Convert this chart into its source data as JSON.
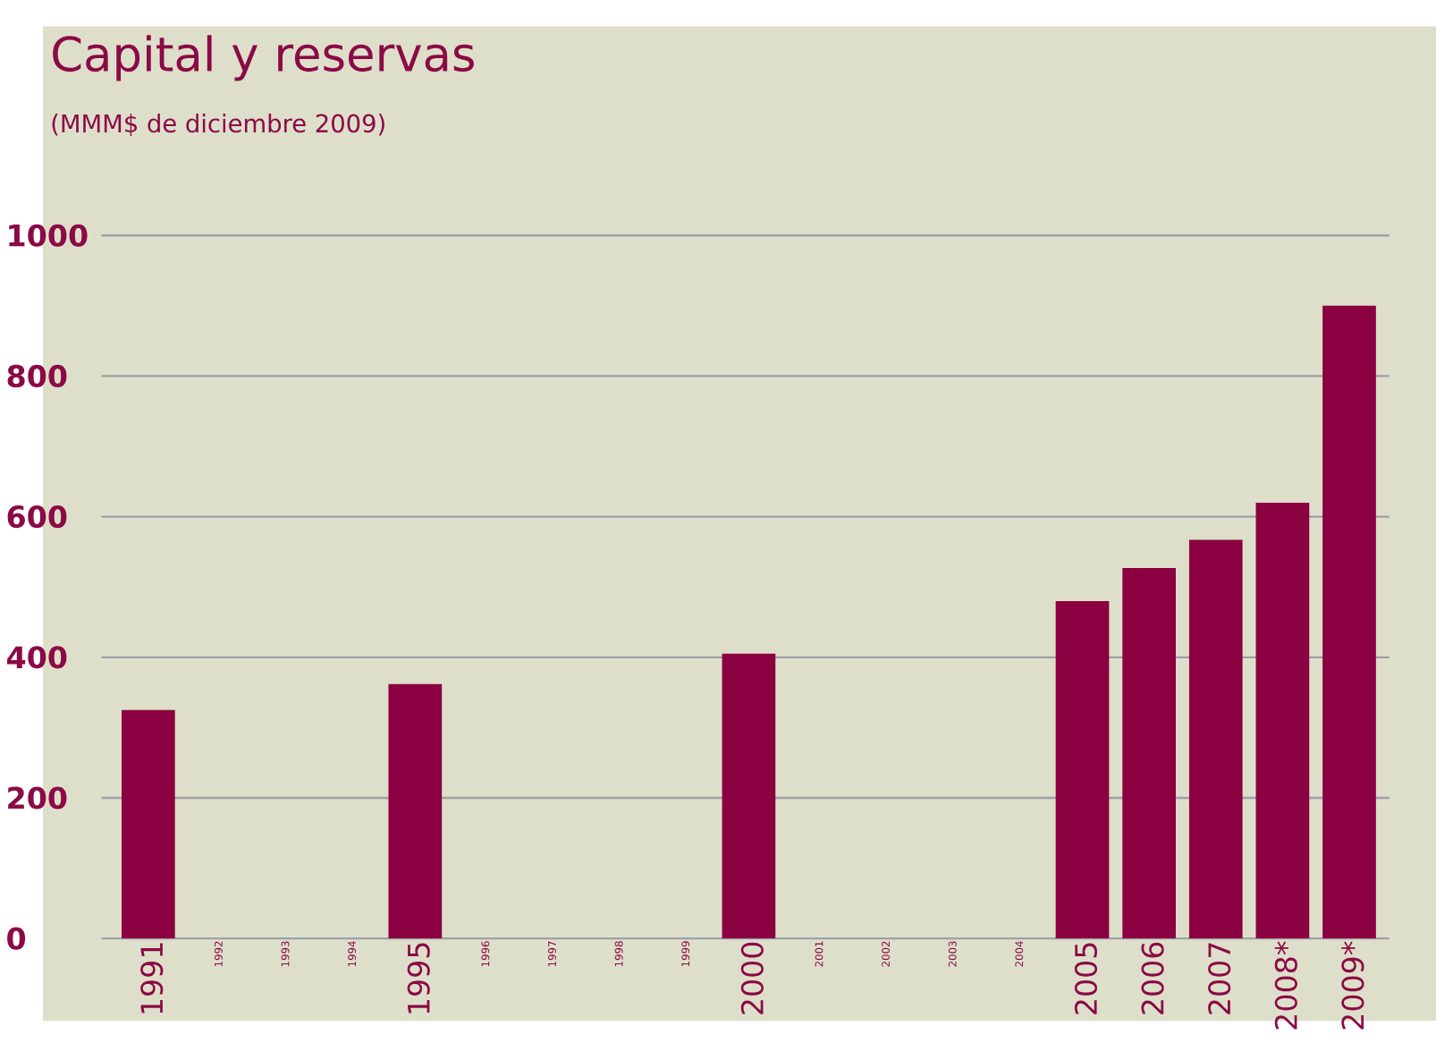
{
  "chart_data": {
    "type": "bar",
    "title": "Capital y reservas",
    "subtitle": "(MMM$ de diciembre 2009)",
    "categories": [
      "1991",
      "1992",
      "1993",
      "1994",
      "1995",
      "1996",
      "1997",
      "1998",
      "1999",
      "2000",
      "2001",
      "2002",
      "2003",
      "2004",
      "2005",
      "2006",
      "2007",
      "2008*",
      "2009*"
    ],
    "values": [
      325,
      null,
      null,
      null,
      362,
      null,
      null,
      null,
      null,
      405,
      null,
      null,
      null,
      null,
      480,
      527,
      567,
      620,
      900
    ],
    "color": "#8b0041",
    "ylim": [
      0,
      1000
    ],
    "yticks": [
      0,
      200,
      400,
      600,
      800,
      1000
    ],
    "grid": "y"
  }
}
